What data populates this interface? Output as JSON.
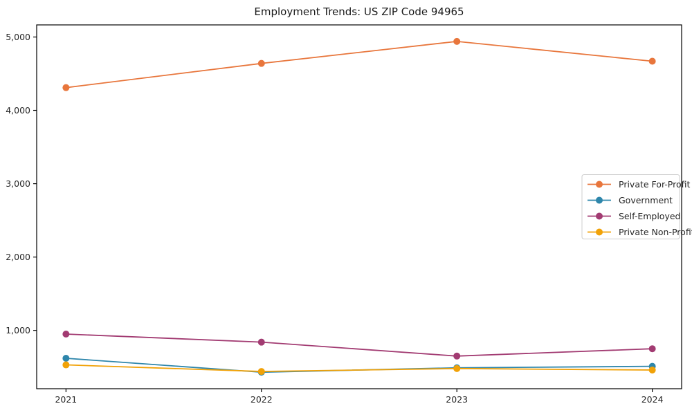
{
  "page": {
    "background": "#ffffff"
  },
  "chart_data": {
    "type": "line",
    "title": "Employment Trends: US ZIP Code 94965",
    "x": [
      2021,
      2022,
      2023,
      2024
    ],
    "xtick_labels": [
      "2021",
      "2022",
      "2023",
      "2024"
    ],
    "yticks": [
      1000,
      2000,
      3000,
      4000,
      5000
    ],
    "ytick_labels": [
      "1,000",
      "2,000",
      "3,000",
      "4,000",
      "5,000"
    ],
    "xlim": [
      2020.85,
      2024.15
    ],
    "ylim": [
      205,
      5165
    ],
    "grid": false,
    "marker": "circle",
    "legend_position": "center-right",
    "series": [
      {
        "name": "Private For-Profit",
        "color": "#E8763C",
        "values": [
          4310,
          4640,
          4940,
          4670
        ]
      },
      {
        "name": "Government",
        "color": "#2E86AB",
        "values": [
          620,
          430,
          490,
          510
        ]
      },
      {
        "name": "Self-Employed",
        "color": "#A23B72",
        "values": [
          950,
          840,
          650,
          750
        ]
      },
      {
        "name": "Private Non-Profit",
        "color": "#F1A208",
        "values": [
          530,
          440,
          480,
          460
        ]
      }
    ],
    "colors": {
      "axis": "#000000",
      "text": "#262626",
      "legend_border": "#cccccc",
      "plot_background": "#ffffff"
    }
  }
}
